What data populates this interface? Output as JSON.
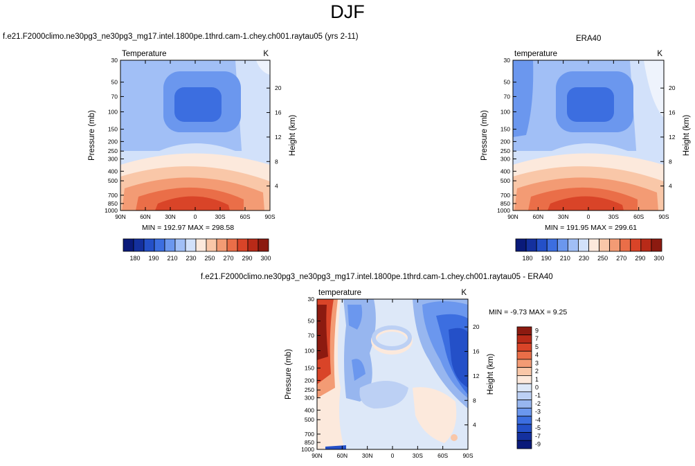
{
  "page": {
    "title": "DJF"
  },
  "panels": [
    {
      "id": "model",
      "case_title": "f.e21.F2000climo.ne30pg3_ne30pg3_mg17.intel.1800pe.1thrd.cam-1.chey.ch001.raytau05 (yrs 2-11)",
      "left_label": "Temperature",
      "units": "K",
      "ylabel": "Pressure (mb)",
      "y2label": "Height (km)",
      "stats": "MIN = 192.97   MAX = 298.58"
    },
    {
      "id": "obs",
      "case_title": "ERA40",
      "left_label": "temperature",
      "units": "K",
      "ylabel": "Pressure (mb)",
      "y2label": "Height (km)",
      "stats": "MIN = 191.95   MAX = 299.61"
    },
    {
      "id": "diff",
      "case_title": "f.e21.F2000climo.ne30pg3_ne30pg3_mg17.intel.1800pe.1thrd.cam-1.chey.ch001.raytau05 - ERA40",
      "left_label": "temperature",
      "units": "K",
      "ylabel": "Pressure (mb)",
      "y2label": "Height (km)",
      "stats": "MIN =  -9.73   MAX =   9.25"
    }
  ],
  "chart_data": [
    {
      "type": "heatmap",
      "panel": "model",
      "x_categories": [
        "90N",
        "60N",
        "30N",
        "0",
        "30S",
        "60S",
        "90S"
      ],
      "y_ticks_pressure": [
        30,
        50,
        70,
        100,
        150,
        200,
        250,
        300,
        400,
        500,
        700,
        850,
        1000
      ],
      "y_ticks_height_km": [
        20,
        16,
        12,
        8,
        4
      ],
      "min": 192.97,
      "max": 298.58,
      "colorbar": {
        "labels": [
          "180",
          "190",
          "210",
          "230",
          "250",
          "270",
          "290",
          "300"
        ],
        "colors": [
          "#0a1a7a",
          "#14309e",
          "#2450c8",
          "#3c6ee0",
          "#6b97ee",
          "#a1bff6",
          "#d2e1fa",
          "#fce9dc",
          "#f9c7a8",
          "#f39b74",
          "#ea6e48",
          "#d94428",
          "#b82a18",
          "#8c1a10"
        ]
      }
    },
    {
      "type": "heatmap",
      "panel": "obs",
      "x_categories": [
        "90N",
        "60N",
        "30N",
        "0",
        "30S",
        "60S",
        "90S"
      ],
      "y_ticks_pressure": [
        30,
        50,
        70,
        100,
        150,
        200,
        250,
        300,
        400,
        500,
        700,
        850,
        1000
      ],
      "y_ticks_height_km": [
        20,
        16,
        12,
        8,
        4
      ],
      "min": 191.95,
      "max": 299.61,
      "colorbar": {
        "labels": [
          "180",
          "190",
          "210",
          "230",
          "250",
          "270",
          "290",
          "300"
        ],
        "colors": [
          "#0a1a7a",
          "#14309e",
          "#2450c8",
          "#3c6ee0",
          "#6b97ee",
          "#a1bff6",
          "#d2e1fa",
          "#fce9dc",
          "#f9c7a8",
          "#f39b74",
          "#ea6e48",
          "#d94428",
          "#b82a18",
          "#8c1a10"
        ]
      }
    },
    {
      "type": "heatmap",
      "panel": "diff",
      "x_categories": [
        "90N",
        "60N",
        "30N",
        "0",
        "30S",
        "60S",
        "90S"
      ],
      "y_ticks_pressure": [
        30,
        50,
        70,
        100,
        150,
        200,
        250,
        300,
        400,
        500,
        700,
        850,
        1000
      ],
      "y_ticks_height_km": [
        20,
        16,
        12,
        8,
        4
      ],
      "min": -9.73,
      "max": 9.25,
      "colorbar": {
        "labels": [
          "9",
          "7",
          "5",
          "4",
          "3",
          "2",
          "1",
          "0",
          "-1",
          "-2",
          "-3",
          "-4",
          "-5",
          "-7",
          "-9"
        ],
        "colors": [
          "#8c1a10",
          "#b82a18",
          "#d94428",
          "#ea6e48",
          "#f39b74",
          "#f9c7a8",
          "#fce9dc",
          "#dde8f8",
          "#bcd0f4",
          "#97b6ef",
          "#6b97ee",
          "#3c6ee0",
          "#2450c8",
          "#14309e",
          "#0a1a7a"
        ]
      }
    }
  ]
}
